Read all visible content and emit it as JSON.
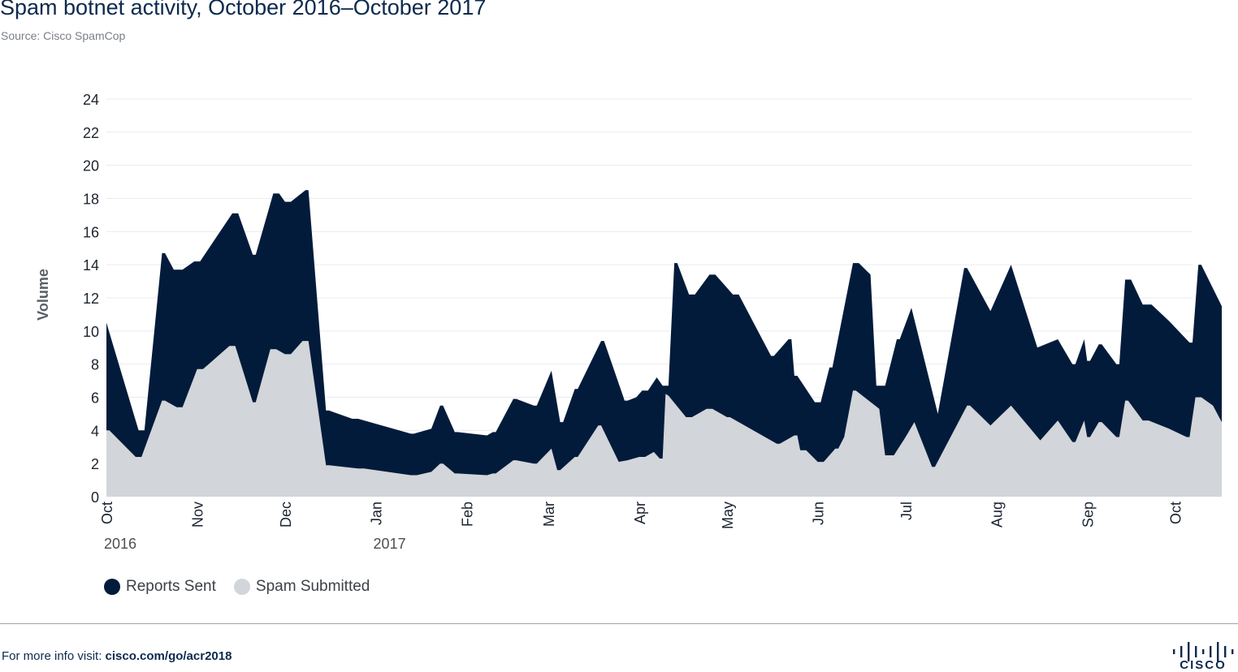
{
  "header": {
    "title": "Spam botnet activity, October 2016–October 2017",
    "subtitle": "Source: Cisco SpamCop"
  },
  "footer": {
    "prefix": "For more info visit: ",
    "link": "cisco.com/go/acr2018",
    "logo_text": "CISCO"
  },
  "colors": {
    "reports_sent": "#031b3b",
    "spam_submitted": "#d2d5d9",
    "grid": "#e9ebee"
  },
  "chart_data": {
    "type": "area",
    "ylabel": "Volume",
    "ylim": [
      0,
      24
    ],
    "yticks": [
      0,
      2,
      4,
      6,
      8,
      10,
      12,
      14,
      16,
      18,
      20,
      22,
      24
    ],
    "xlim": [
      "2016-10-01",
      "2017-10-07"
    ],
    "xticks": [
      {
        "date": "2016-10-01",
        "label": "Oct"
      },
      {
        "date": "2016-11-01",
        "label": "Nov"
      },
      {
        "date": "2016-12-01",
        "label": "Dec"
      },
      {
        "date": "2017-01-01",
        "label": "Jan"
      },
      {
        "date": "2017-02-01",
        "label": "Feb"
      },
      {
        "date": "2017-03-01",
        "label": "Mar"
      },
      {
        "date": "2017-04-01",
        "label": "Apr"
      },
      {
        "date": "2017-05-01",
        "label": "May"
      },
      {
        "date": "2017-06-01",
        "label": "Jun"
      },
      {
        "date": "2017-07-01",
        "label": "Jul"
      },
      {
        "date": "2017-08-01",
        "label": "Aug"
      },
      {
        "date": "2017-09-01",
        "label": "Sep"
      },
      {
        "date": "2017-10-01",
        "label": "Oct"
      }
    ],
    "year_labels": [
      {
        "date": "2016-10-01",
        "label": "2016"
      },
      {
        "date": "2017-01-01",
        "label": "2017"
      }
    ],
    "grid": true,
    "legend_position": "bottom-left",
    "series": [
      {
        "name": "Reports Sent",
        "color": "#031b3b",
        "points": [
          [
            "2016-10-01",
            10.5
          ],
          [
            "2016-10-12",
            4.0
          ],
          [
            "2016-10-14",
            4.0
          ],
          [
            "2016-10-20",
            14.7
          ],
          [
            "2016-10-21",
            14.7
          ],
          [
            "2016-10-24",
            13.7
          ],
          [
            "2016-10-27",
            13.7
          ],
          [
            "2016-10-31",
            14.2
          ],
          [
            "2016-11-02",
            14.2
          ],
          [
            "2016-11-13",
            17.1
          ],
          [
            "2016-11-15",
            17.1
          ],
          [
            "2016-11-20",
            14.6
          ],
          [
            "2016-11-21",
            14.6
          ],
          [
            "2016-11-27",
            18.3
          ],
          [
            "2016-11-29",
            18.3
          ],
          [
            "2016-12-01",
            17.8
          ],
          [
            "2016-12-03",
            17.8
          ],
          [
            "2016-12-08",
            18.5
          ],
          [
            "2016-12-09",
            18.5
          ],
          [
            "2016-12-15",
            5.2
          ],
          [
            "2016-12-16",
            5.2
          ],
          [
            "2016-12-24",
            4.7
          ],
          [
            "2016-12-26",
            4.7
          ],
          [
            "2017-01-13",
            3.8
          ],
          [
            "2017-01-14",
            3.8
          ],
          [
            "2017-01-20",
            4.1
          ],
          [
            "2017-01-23",
            5.5
          ],
          [
            "2017-01-24",
            5.5
          ],
          [
            "2017-01-28",
            3.9
          ],
          [
            "2017-01-29",
            3.9
          ],
          [
            "2017-02-08",
            3.7
          ],
          [
            "2017-02-10",
            3.9
          ],
          [
            "2017-02-11",
            3.9
          ],
          [
            "2017-02-17",
            5.9
          ],
          [
            "2017-02-18",
            5.9
          ],
          [
            "2017-02-24",
            5.5
          ],
          [
            "2017-02-25",
            5.5
          ],
          [
            "2017-03-02",
            7.6
          ],
          [
            "2017-03-05",
            4.5
          ],
          [
            "2017-03-06",
            4.5
          ],
          [
            "2017-03-10",
            6.5
          ],
          [
            "2017-03-11",
            6.5
          ],
          [
            "2017-03-19",
            9.4
          ],
          [
            "2017-03-20",
            9.4
          ],
          [
            "2017-03-27",
            5.8
          ],
          [
            "2017-03-28",
            5.8
          ],
          [
            "2017-03-31",
            6.0
          ],
          [
            "2017-04-01",
            6.2
          ],
          [
            "2017-04-02",
            6.4
          ],
          [
            "2017-04-04",
            6.4
          ],
          [
            "2017-04-07",
            7.2
          ],
          [
            "2017-04-09",
            6.7
          ],
          [
            "2017-04-11",
            6.7
          ],
          [
            "2017-04-13",
            14.1
          ],
          [
            "2017-04-14",
            14.1
          ],
          [
            "2017-04-18",
            12.2
          ],
          [
            "2017-04-20",
            12.2
          ],
          [
            "2017-04-25",
            13.4
          ],
          [
            "2017-04-27",
            13.4
          ],
          [
            "2017-05-03",
            12.2
          ],
          [
            "2017-05-05",
            12.2
          ],
          [
            "2017-05-16",
            8.5
          ],
          [
            "2017-05-17",
            8.5
          ],
          [
            "2017-05-22",
            9.5
          ],
          [
            "2017-05-23",
            9.5
          ],
          [
            "2017-05-24",
            7.3
          ],
          [
            "2017-05-25",
            7.3
          ],
          [
            "2017-05-31",
            5.7
          ],
          [
            "2017-06-02",
            5.7
          ],
          [
            "2017-06-05",
            7.8
          ],
          [
            "2017-06-06",
            7.8
          ],
          [
            "2017-06-13",
            14.1
          ],
          [
            "2017-06-15",
            14.1
          ],
          [
            "2017-06-19",
            13.4
          ],
          [
            "2017-06-21",
            6.7
          ],
          [
            "2017-06-24",
            6.7
          ],
          [
            "2017-06-28",
            9.5
          ],
          [
            "2017-06-29",
            9.5
          ],
          [
            "2017-07-03",
            11.4
          ],
          [
            "2017-07-12",
            5.0
          ],
          [
            "2017-07-21",
            13.8
          ],
          [
            "2017-07-22",
            13.8
          ],
          [
            "2017-07-30",
            11.2
          ],
          [
            "2017-08-06",
            14.0
          ],
          [
            "2017-08-15",
            9.0
          ],
          [
            "2017-08-22",
            9.5
          ],
          [
            "2017-08-27",
            8.0
          ],
          [
            "2017-08-28",
            8.0
          ],
          [
            "2017-08-31",
            9.5
          ],
          [
            "2017-09-01",
            8.2
          ],
          [
            "2017-09-02",
            8.2
          ],
          [
            "2017-09-05",
            9.2
          ],
          [
            "2017-09-06",
            9.2
          ],
          [
            "2017-09-11",
            8.0
          ],
          [
            "2017-09-12",
            8.0
          ],
          [
            "2017-09-14",
            13.1
          ],
          [
            "2017-09-16",
            13.1
          ],
          [
            "2017-09-20",
            11.6
          ],
          [
            "2017-09-23",
            11.6
          ],
          [
            "2017-09-29",
            10.6
          ],
          [
            "2017-10-06",
            9.3
          ],
          [
            "2017-10-07",
            9.3
          ],
          [
            "2017-10-09",
            14.0
          ],
          [
            "2017-10-10",
            14.0
          ],
          [
            "2017-10-17",
            11.5
          ]
        ]
      },
      {
        "name": "Spam Submitted",
        "color": "#d2d5d9",
        "points": [
          [
            "2016-10-01",
            4.0
          ],
          [
            "2016-10-02",
            4.0
          ],
          [
            "2016-10-11",
            2.4
          ],
          [
            "2016-10-13",
            2.4
          ],
          [
            "2016-10-20",
            5.8
          ],
          [
            "2016-10-21",
            5.8
          ],
          [
            "2016-10-25",
            5.4
          ],
          [
            "2016-10-27",
            5.4
          ],
          [
            "2016-11-01",
            7.7
          ],
          [
            "2016-11-03",
            7.7
          ],
          [
            "2016-11-12",
            9.1
          ],
          [
            "2016-11-14",
            9.1
          ],
          [
            "2016-11-20",
            5.7
          ],
          [
            "2016-11-21",
            5.7
          ],
          [
            "2016-11-26",
            8.9
          ],
          [
            "2016-11-28",
            8.9
          ],
          [
            "2016-12-01",
            8.6
          ],
          [
            "2016-12-03",
            8.6
          ],
          [
            "2016-12-07",
            9.4
          ],
          [
            "2016-12-09",
            9.4
          ],
          [
            "2016-12-15",
            1.9
          ],
          [
            "2016-12-16",
            1.9
          ],
          [
            "2016-12-26",
            1.7
          ],
          [
            "2016-12-28",
            1.7
          ],
          [
            "2017-01-13",
            1.3
          ],
          [
            "2017-01-15",
            1.3
          ],
          [
            "2017-01-20",
            1.5
          ],
          [
            "2017-01-23",
            2.0
          ],
          [
            "2017-01-24",
            2.0
          ],
          [
            "2017-01-28",
            1.4
          ],
          [
            "2017-01-29",
            1.4
          ],
          [
            "2017-02-08",
            1.3
          ],
          [
            "2017-02-10",
            1.4
          ],
          [
            "2017-02-11",
            1.4
          ],
          [
            "2017-02-17",
            2.2
          ],
          [
            "2017-02-18",
            2.2
          ],
          [
            "2017-02-24",
            2.0
          ],
          [
            "2017-02-25",
            2.0
          ],
          [
            "2017-03-02",
            2.9
          ],
          [
            "2017-03-04",
            1.6
          ],
          [
            "2017-03-05",
            1.6
          ],
          [
            "2017-03-10",
            2.4
          ],
          [
            "2017-03-11",
            2.4
          ],
          [
            "2017-03-18",
            4.3
          ],
          [
            "2017-03-19",
            4.3
          ],
          [
            "2017-03-25",
            2.1
          ],
          [
            "2017-03-28",
            2.2
          ],
          [
            "2017-04-01",
            2.4
          ],
          [
            "2017-04-03",
            2.4
          ],
          [
            "2017-04-06",
            2.7
          ],
          [
            "2017-04-08",
            2.3
          ],
          [
            "2017-04-09",
            2.3
          ],
          [
            "2017-04-10",
            6.2
          ],
          [
            "2017-04-11",
            6.1
          ],
          [
            "2017-04-17",
            4.8
          ],
          [
            "2017-04-19",
            4.8
          ],
          [
            "2017-04-24",
            5.3
          ],
          [
            "2017-04-26",
            5.3
          ],
          [
            "2017-05-01",
            4.8
          ],
          [
            "2017-05-02",
            4.8
          ],
          [
            "2017-05-18",
            3.2
          ],
          [
            "2017-05-19",
            3.2
          ],
          [
            "2017-05-24",
            3.7
          ],
          [
            "2017-05-25",
            3.7
          ],
          [
            "2017-05-26",
            2.8
          ],
          [
            "2017-05-28",
            2.8
          ],
          [
            "2017-06-01",
            2.1
          ],
          [
            "2017-06-03",
            2.1
          ],
          [
            "2017-06-07",
            2.9
          ],
          [
            "2017-06-08",
            2.9
          ],
          [
            "2017-06-10",
            3.6
          ],
          [
            "2017-06-13",
            6.4
          ],
          [
            "2017-06-14",
            6.4
          ],
          [
            "2017-06-22",
            5.3
          ],
          [
            "2017-06-24",
            2.5
          ],
          [
            "2017-06-27",
            2.5
          ],
          [
            "2017-07-01",
            3.6
          ],
          [
            "2017-07-04",
            4.5
          ],
          [
            "2017-07-10",
            1.8
          ],
          [
            "2017-07-11",
            1.8
          ],
          [
            "2017-07-22",
            5.5
          ],
          [
            "2017-07-23",
            5.5
          ],
          [
            "2017-07-30",
            4.3
          ],
          [
            "2017-08-06",
            5.5
          ],
          [
            "2017-08-16",
            3.4
          ],
          [
            "2017-08-22",
            4.6
          ],
          [
            "2017-08-27",
            3.3
          ],
          [
            "2017-08-28",
            3.3
          ],
          [
            "2017-08-31",
            4.6
          ],
          [
            "2017-09-01",
            3.6
          ],
          [
            "2017-09-02",
            3.6
          ],
          [
            "2017-09-05",
            4.5
          ],
          [
            "2017-09-06",
            4.5
          ],
          [
            "2017-09-11",
            3.6
          ],
          [
            "2017-09-12",
            3.6
          ],
          [
            "2017-09-14",
            5.8
          ],
          [
            "2017-09-15",
            5.8
          ],
          [
            "2017-09-20",
            4.6
          ],
          [
            "2017-09-22",
            4.6
          ],
          [
            "2017-09-29",
            4.1
          ],
          [
            "2017-10-05",
            3.6
          ],
          [
            "2017-10-06",
            3.6
          ],
          [
            "2017-10-08",
            6.0
          ],
          [
            "2017-10-10",
            6.0
          ],
          [
            "2017-10-14",
            5.5
          ],
          [
            "2017-10-17",
            4.5
          ]
        ]
      }
    ]
  }
}
